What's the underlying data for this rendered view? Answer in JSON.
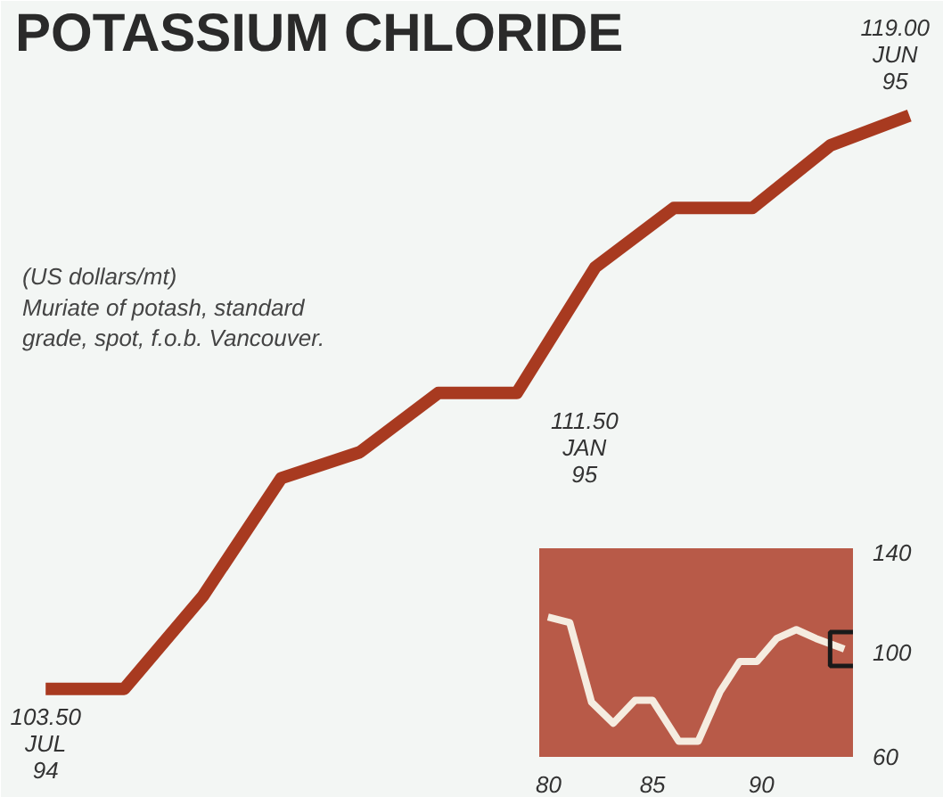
{
  "chart_data": [
    {
      "type": "line",
      "title": "POTASSIUM CHLORIDE",
      "annotations": [
        "(US dollars/mt)\nMuriate of potash, standard\ngrade, spot, f.o.b. Vancouver."
      ],
      "categories": [
        null,
        null,
        null,
        null,
        null,
        null,
        null,
        null,
        null,
        null,
        null,
        null
      ],
      "series": [
        {
          "color": "#a83a20",
          "values": [
            103.5,
            103.5,
            106.0,
            109.2,
            109.9,
            111.5,
            111.5,
            114.9,
            116.5,
            116.5,
            118.2,
            119.0
          ],
          "value_labels": [
            "103.50\nJUL\n94",
            null,
            null,
            null,
            null,
            null,
            "111.50\nJAN\n95",
            null,
            null,
            null,
            null,
            "119.00\nJUN\n95"
          ]
        }
      ],
      "grid": false
    },
    {
      "type": "line",
      "x": [
        80.2,
        81.2,
        82.2,
        83.2,
        84.2,
        85.0,
        86.2,
        87.1,
        88.1,
        89.0,
        89.8,
        90.7,
        91.6,
        92.5,
        93.8
      ],
      "series": [
        {
          "color": "#f5ece0",
          "values": [
            113.6,
            111.5,
            81,
            72.9,
            81.7,
            81.7,
            66,
            66,
            85,
            96.6,
            96.6,
            105.4,
            108.8,
            105.4,
            101.4
          ]
        }
      ],
      "xlim": [
        79.8,
        94.2
      ],
      "ylim": [
        60,
        140
      ],
      "xticks": [
        80,
        85,
        90
      ],
      "yticks": [
        60,
        100,
        140
      ],
      "grid": false
    }
  ]
}
